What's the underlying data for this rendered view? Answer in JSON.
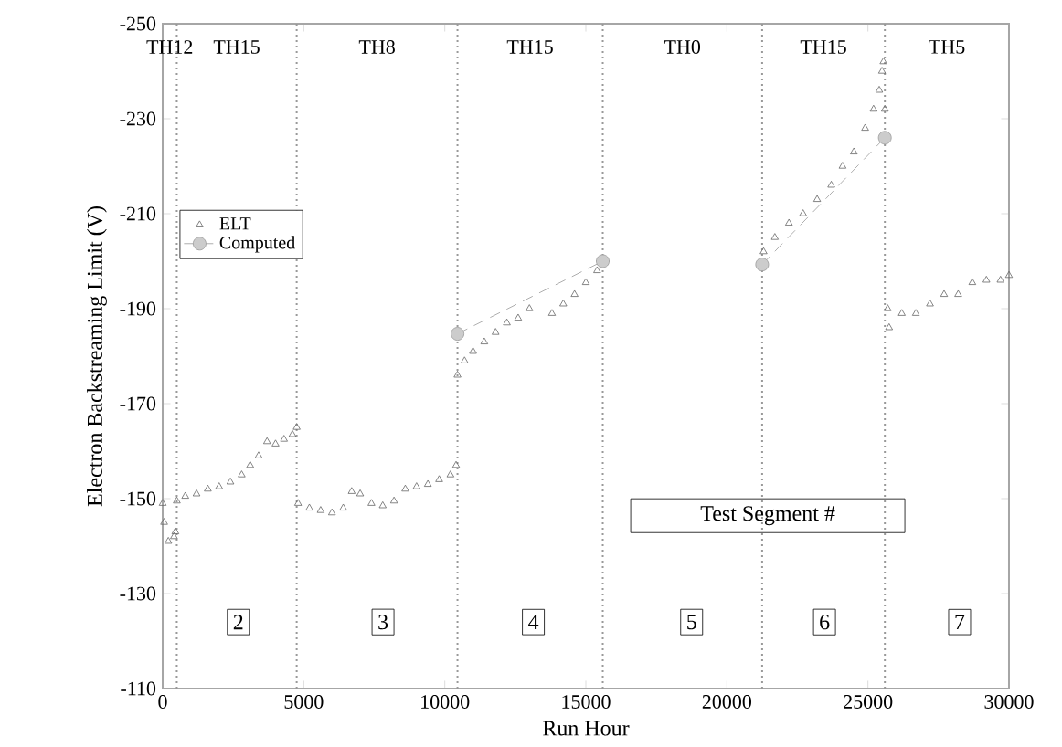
{
  "chart_data": {
    "type": "scatter",
    "xlabel": "Run Hour",
    "ylabel": "Electron Backstreaming Limit (V)",
    "xlim": [
      0,
      30000
    ],
    "ylim": [
      -110,
      -250
    ],
    "xticks": [
      0,
      5000,
      10000,
      15000,
      20000,
      25000,
      30000
    ],
    "yticks": [
      -110,
      -130,
      -150,
      -170,
      -190,
      -210,
      -230,
      -250
    ],
    "legend": "left",
    "grid": false,
    "series": [
      {
        "name": "ELT",
        "type": "scatter",
        "marker": "triangle",
        "color": "#666666",
        "x": [
          0,
          50,
          200,
          400,
          450,
          500,
          800,
          1200,
          1600,
          2000,
          2400,
          2800,
          3100,
          3400,
          3700,
          4000,
          4300,
          4600,
          4750,
          4800,
          5200,
          5600,
          6000,
          6400,
          6700,
          7000,
          7400,
          7800,
          8200,
          8600,
          9000,
          9400,
          9800,
          10200,
          10400,
          10450,
          10700,
          11000,
          11400,
          11800,
          12200,
          12600,
          13000,
          13800,
          14200,
          14600,
          15000,
          15400,
          21300,
          21700,
          22200,
          22700,
          23200,
          23700,
          24100,
          24500,
          24900,
          25200,
          25400,
          25500,
          25550,
          25600,
          25700,
          25750,
          26200,
          26700,
          27200,
          27700,
          28200,
          28700,
          29200,
          29700,
          30000
        ],
        "values": [
          -149,
          -145,
          -141,
          -142,
          -143,
          -149.5,
          -150.5,
          -151,
          -152,
          -152.5,
          -153.5,
          -155,
          -157,
          -159,
          -162,
          -161.5,
          -162.5,
          -163.5,
          -165,
          -149,
          -148,
          -147.5,
          -147,
          -148,
          -151.5,
          -151,
          -149,
          -148.5,
          -149.5,
          -152,
          -152.5,
          -153,
          -154,
          -155,
          -157,
          -176,
          -179,
          -181,
          -183,
          -185,
          -187,
          -188,
          -190,
          -189,
          -191,
          -193,
          -195.5,
          -198,
          -202,
          -205,
          -208,
          -210,
          -213,
          -216,
          -220,
          -223,
          -228,
          -232,
          -236,
          -240,
          -242,
          -232,
          -190,
          -186,
          -189,
          -189,
          -191,
          -193,
          -193,
          -195.5,
          -196,
          -196,
          -197
        ]
      },
      {
        "name": "Computed",
        "type": "line",
        "marker": "circle",
        "line_style": "dashed",
        "color": "#999999",
        "x": [
          10450,
          15600,
          null,
          21250,
          25600
        ],
        "values": [
          -184.7,
          -200,
          null,
          -199.3,
          -226
        ]
      }
    ],
    "ref_lines": [
      {
        "axis": "x",
        "value": 500,
        "line_style": "dotted",
        "color": "#999999"
      },
      {
        "axis": "x",
        "value": 4750,
        "line_style": "dotted",
        "color": "#999999"
      },
      {
        "axis": "x",
        "value": 10450,
        "line_style": "dotted",
        "color": "#999999"
      },
      {
        "axis": "x",
        "value": 15600,
        "line_style": "dotted",
        "color": "#999999"
      },
      {
        "axis": "x",
        "value": 21250,
        "line_style": "dotted",
        "color": "#999999"
      },
      {
        "axis": "x",
        "value": 25600,
        "line_style": "dotted",
        "color": "#999999"
      }
    ],
    "annotations": [
      "TH12",
      "TH15",
      "TH8",
      "TH15",
      "TH0",
      "TH15",
      "TH5",
      "Test Segment #",
      {
        "text": "2",
        "x": 2680,
        "y": -124
      },
      {
        "text": "3",
        "x": 7810,
        "y": -124
      },
      {
        "text": "4",
        "x": 13140,
        "y": -124
      },
      {
        "text": "5",
        "x": 18750,
        "y": -124
      },
      {
        "text": "6",
        "x": 23460,
        "y": -124
      },
      {
        "text": "7",
        "x": 28250,
        "y": -124
      }
    ]
  }
}
